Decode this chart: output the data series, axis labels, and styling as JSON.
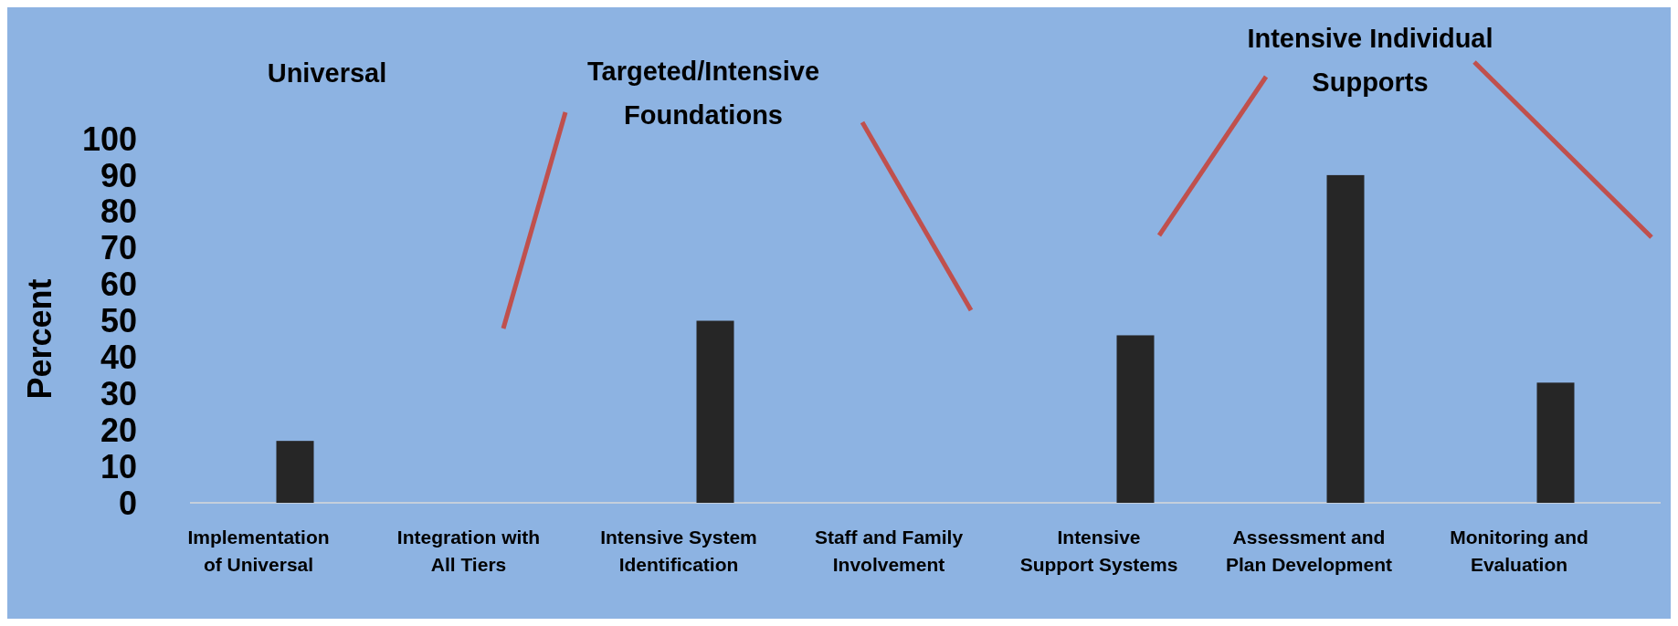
{
  "chart_data": {
    "type": "bar",
    "ylabel": "Percent",
    "categories": [
      "Implementation of Universal",
      "Integration with All Tiers",
      "Intensive System Identification",
      "Staff and Family Involvement",
      "Intensive Support Systems",
      "Assessment and Plan Development",
      "Monitoring and Evaluation"
    ],
    "values": [
      17,
      0,
      50,
      0,
      46,
      90,
      33
    ],
    "color": "#262626",
    "ylim": [
      0,
      100
    ],
    "yticks": [
      0,
      10,
      20,
      30,
      40,
      50,
      60,
      70,
      80,
      90,
      100
    ],
    "grid": false,
    "annotations": [
      "Universal",
      "Targeted/Intensive Foundations",
      "Intensive Individual Supports"
    ]
  }
}
